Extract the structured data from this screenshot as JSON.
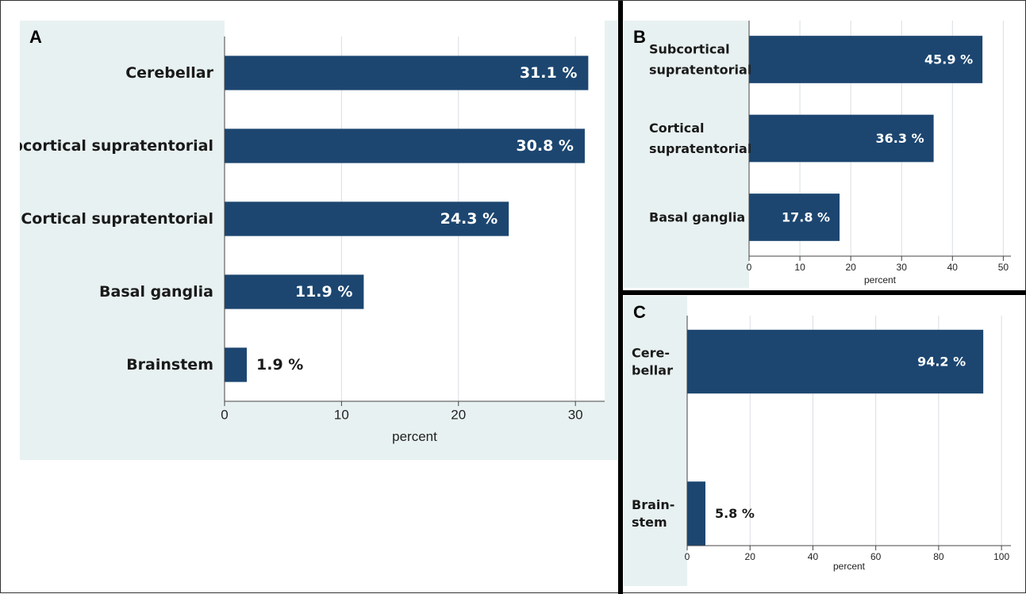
{
  "chart_data": [
    {
      "panel": "A",
      "type": "bar",
      "orientation": "horizontal",
      "categories": [
        "Cerebellar",
        "Subcortical supratentorial",
        "Cortical supratentorial",
        "Basal ganglia",
        "Brainstem"
      ],
      "values": [
        31.1,
        30.8,
        24.3,
        11.9,
        1.9
      ],
      "data_labels": [
        "31.1 %",
        "30.8 %",
        "24.3 %",
        "11.9 %",
        "1.9 %"
      ],
      "xticks": [
        0,
        10,
        20,
        30
      ],
      "xlim": [
        0,
        32.5
      ],
      "xlabel": "percent",
      "title": "",
      "grid": true,
      "colors": {
        "bar": "#1c4670",
        "background": "#e8f1f1",
        "plot_background": "#ffffff"
      }
    },
    {
      "panel": "B",
      "type": "bar",
      "orientation": "horizontal",
      "categories": [
        [
          "Subcortical",
          "supratentorial"
        ],
        [
          "Cortical",
          "supratentorial"
        ],
        [
          "Basal ganglia"
        ]
      ],
      "values": [
        45.9,
        36.3,
        17.8
      ],
      "data_labels": [
        "45.9 %",
        "36.3 %",
        "17.8 %"
      ],
      "xticks": [
        0,
        10,
        20,
        30,
        40,
        50
      ],
      "xlim": [
        0,
        51.5
      ],
      "xlabel": "percent",
      "title": "",
      "grid": true,
      "colors": {
        "bar": "#1c4670",
        "background": "#e8f1f1",
        "plot_background": "#ffffff"
      }
    },
    {
      "panel": "C",
      "type": "bar",
      "orientation": "horizontal",
      "categories": [
        [
          "Cere-",
          "bellar"
        ],
        [
          "Brain-",
          "stem"
        ]
      ],
      "values": [
        94.2,
        5.8
      ],
      "data_labels": [
        "94.2 %",
        "5.8 %"
      ],
      "xticks": [
        0,
        20,
        40,
        60,
        80,
        100
      ],
      "xlim": [
        0,
        103
      ],
      "xlabel": "percent",
      "title": "",
      "grid": true,
      "colors": {
        "bar": "#1c4670",
        "background": "#e8f1f1",
        "plot_background": "#ffffff"
      }
    }
  ]
}
